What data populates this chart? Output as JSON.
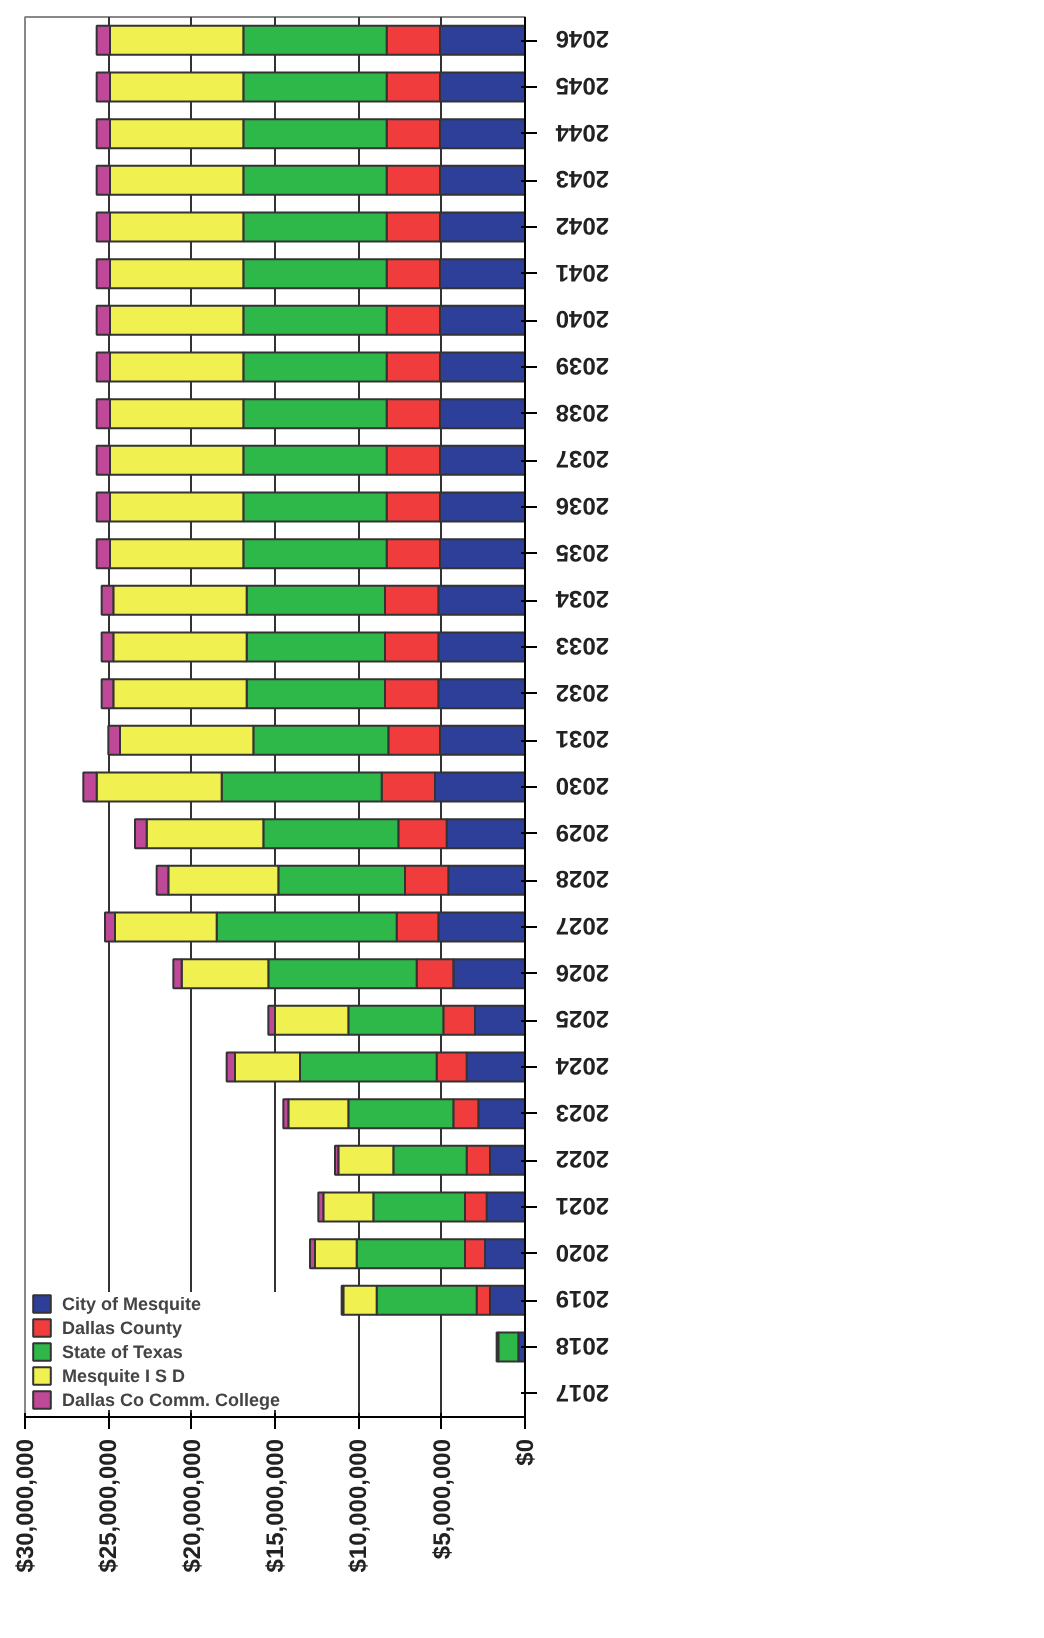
{
  "chart_data": {
    "type": "bar",
    "orientation": "horizontal",
    "stacked": true,
    "categories": [
      "2046",
      "2045",
      "2044",
      "2043",
      "2042",
      "2041",
      "2040",
      "2039",
      "2038",
      "2037",
      "2036",
      "2035",
      "2034",
      "2033",
      "2032",
      "2031",
      "2030",
      "2029",
      "2028",
      "2027",
      "2026",
      "2025",
      "2024",
      "2023",
      "2022",
      "2021",
      "2020",
      "2019",
      "2018",
      "2017"
    ],
    "series": [
      {
        "name": "City of Mesquite",
        "color": "#2e3f9a",
        "values": [
          5100000,
          5100000,
          5100000,
          5100000,
          5100000,
          5100000,
          5100000,
          5100000,
          5100000,
          5100000,
          5100000,
          5100000,
          5200000,
          5200000,
          5200000,
          5100000,
          5400000,
          4700000,
          4600000,
          5200000,
          4300000,
          3000000,
          3500000,
          2800000,
          2100000,
          2300000,
          2400000,
          2100000,
          400000,
          0
        ]
      },
      {
        "name": "Dallas County",
        "color": "#f03c3c",
        "values": [
          3200000,
          3200000,
          3200000,
          3200000,
          3200000,
          3200000,
          3200000,
          3200000,
          3200000,
          3200000,
          3200000,
          3200000,
          3200000,
          3200000,
          3200000,
          3100000,
          3200000,
          2900000,
          2600000,
          2500000,
          2200000,
          1900000,
          1800000,
          1500000,
          1400000,
          1300000,
          1200000,
          800000,
          0,
          0
        ]
      },
      {
        "name": "State of Texas",
        "color": "#2eb84a",
        "values": [
          8600000,
          8600000,
          8600000,
          8600000,
          8600000,
          8600000,
          8600000,
          8600000,
          8600000,
          8600000,
          8600000,
          8600000,
          8300000,
          8300000,
          8300000,
          8100000,
          9600000,
          8100000,
          7600000,
          10800000,
          8900000,
          5700000,
          8200000,
          6300000,
          4400000,
          5500000,
          6500000,
          6000000,
          1200000,
          0
        ]
      },
      {
        "name": "Mesquite I S D",
        "color": "#f0f050",
        "values": [
          8000000,
          8000000,
          8000000,
          8000000,
          8000000,
          8000000,
          8000000,
          8000000,
          8000000,
          8000000,
          8000000,
          8000000,
          8000000,
          8000000,
          8000000,
          8000000,
          7500000,
          7000000,
          6600000,
          6100000,
          5200000,
          4400000,
          3900000,
          3600000,
          3300000,
          3000000,
          2500000,
          2000000,
          100000,
          0
        ]
      },
      {
        "name": "Dallas Co Comm. College",
        "color": "#c04898",
        "values": [
          800000,
          800000,
          800000,
          800000,
          800000,
          800000,
          800000,
          800000,
          800000,
          800000,
          800000,
          800000,
          700000,
          700000,
          700000,
          700000,
          800000,
          700000,
          700000,
          600000,
          500000,
          400000,
          500000,
          300000,
          200000,
          300000,
          300000,
          100000,
          0,
          0
        ]
      }
    ],
    "xlim": [
      30000000,
      0
    ],
    "xticks": [
      {
        "value": 30000000,
        "label": "$30,000,000"
      },
      {
        "value": 25000000,
        "label": "$25,000,000"
      },
      {
        "value": 20000000,
        "label": "$20,000,000"
      },
      {
        "value": 15000000,
        "label": "$15,000,000"
      },
      {
        "value": 10000000,
        "label": "$10,000,000"
      },
      {
        "value": 5000000,
        "label": "$5,000,000"
      },
      {
        "value": 0,
        "label": "$0"
      }
    ],
    "grid": "x",
    "legend": "bottom left"
  }
}
